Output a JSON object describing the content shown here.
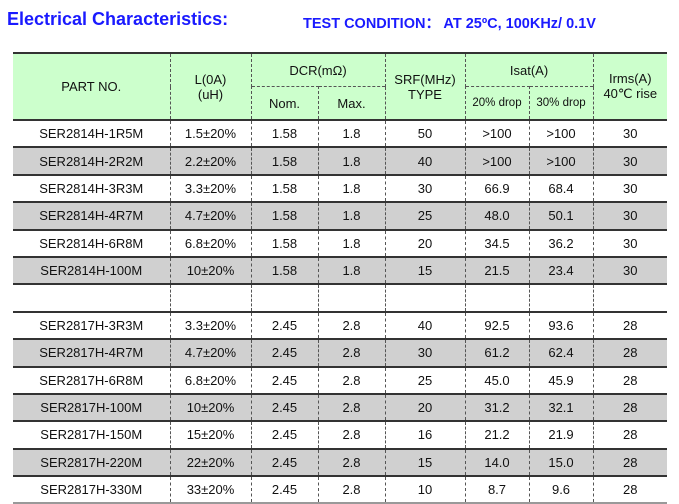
{
  "title": "Electrical Characteristics:",
  "test_condition": "TEST CONDITION：  AT 25ºC, 100KHz/ 0.1V",
  "headers": {
    "part": "PART NO.",
    "l": "L(0A)",
    "l_unit": "(uH)",
    "dcr": "DCR(mΩ)",
    "nom": "Nom.",
    "max": "Max.",
    "srf": "SRF(MHz)",
    "srf_sub": "TYPE",
    "isat": "Isat(A)",
    "d20": "20% drop",
    "d30": "30% drop",
    "irms": "Irms(A)",
    "irms_sub": "40℃ rise"
  },
  "group1": [
    [
      "SER2814H-1R5M",
      "1.5±20%",
      "1.58",
      "1.8",
      "50",
      ">100",
      ">100",
      "30"
    ],
    [
      "SER2814H-2R2M",
      "2.2±20%",
      "1.58",
      "1.8",
      "40",
      ">100",
      ">100",
      "30"
    ],
    [
      "SER2814H-3R3M",
      "3.3±20%",
      "1.58",
      "1.8",
      "30",
      "66.9",
      "68.4",
      "30"
    ],
    [
      "SER2814H-4R7M",
      "4.7±20%",
      "1.58",
      "1.8",
      "25",
      "48.0",
      "50.1",
      "30"
    ],
    [
      "SER2814H-6R8M",
      "6.8±20%",
      "1.58",
      "1.8",
      "20",
      "34.5",
      "36.2",
      "30"
    ],
    [
      "SER2814H-100M",
      "10±20%",
      "1.58",
      "1.8",
      "15",
      "21.5",
      "23.4",
      "30"
    ]
  ],
  "group2": [
    [
      "SER2817H-3R3M",
      "3.3±20%",
      "2.45",
      "2.8",
      "40",
      "92.5",
      "93.6",
      "28"
    ],
    [
      "SER2817H-4R7M",
      "4.7±20%",
      "2.45",
      "2.8",
      "30",
      "61.2",
      "62.4",
      "28"
    ],
    [
      "SER2817H-6R8M",
      "6.8±20%",
      "2.45",
      "2.8",
      "25",
      "45.0",
      "45.9",
      "28"
    ],
    [
      "SER2817H-100M",
      "10±20%",
      "2.45",
      "2.8",
      "20",
      "31.2",
      "32.1",
      "28"
    ],
    [
      "SER2817H-150M",
      "15±20%",
      "2.45",
      "2.8",
      "16",
      "21.2",
      "21.9",
      "28"
    ],
    [
      "SER2817H-220M",
      "22±20%",
      "2.45",
      "2.8",
      "15",
      "14.0",
      "15.0",
      "28"
    ],
    [
      "SER2817H-330M",
      "33±20%",
      "2.45",
      "2.8",
      "10",
      "8.7",
      "9.6",
      "28"
    ]
  ]
}
